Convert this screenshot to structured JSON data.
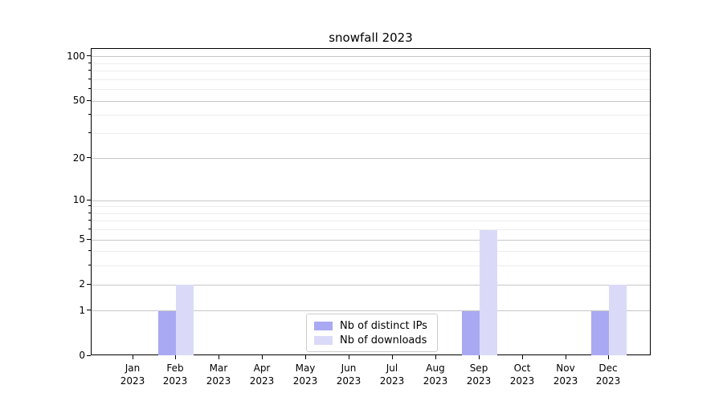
{
  "chart_data": {
    "type": "bar",
    "title": "snowfall 2023",
    "categories": [
      "Jan 2023",
      "Feb 2023",
      "Mar 2023",
      "Apr 2023",
      "May 2023",
      "Jun 2023",
      "Jul 2023",
      "Aug 2023",
      "Sep 2023",
      "Oct 2023",
      "Nov 2023",
      "Dec 2023"
    ],
    "series": [
      {
        "name": "Nb of distinct IPs",
        "color": "#a9a9f3",
        "values": [
          0,
          1,
          0,
          0,
          0,
          0,
          0,
          0,
          1,
          0,
          0,
          1
        ]
      },
      {
        "name": "Nb of downloads",
        "color": "#dadaf8",
        "values": [
          0,
          2,
          0,
          0,
          0,
          0,
          0,
          0,
          6,
          0,
          0,
          2
        ]
      }
    ],
    "xlabel": "",
    "ylabel": "",
    "y_scale": "log1p",
    "ylim": [
      0,
      113
    ],
    "y_ticks": [
      0,
      1,
      2,
      5,
      10,
      20,
      50,
      100
    ],
    "y_gridlines_major": [
      1,
      2,
      5,
      10,
      20,
      50,
      100
    ],
    "y_gridlines_minor": [
      3,
      4,
      6,
      7,
      8,
      9,
      30,
      40,
      60,
      70,
      80,
      90
    ],
    "grid": true,
    "legend": {
      "position": "lower-center-inside",
      "entries": [
        "Nb of distinct IPs",
        "Nb of downloads"
      ]
    },
    "colors": {
      "major_grid": "#c6c6c6",
      "minor_grid": "#ececec",
      "axis": "#000000",
      "text": "#000000",
      "background": "#ffffff"
    }
  }
}
